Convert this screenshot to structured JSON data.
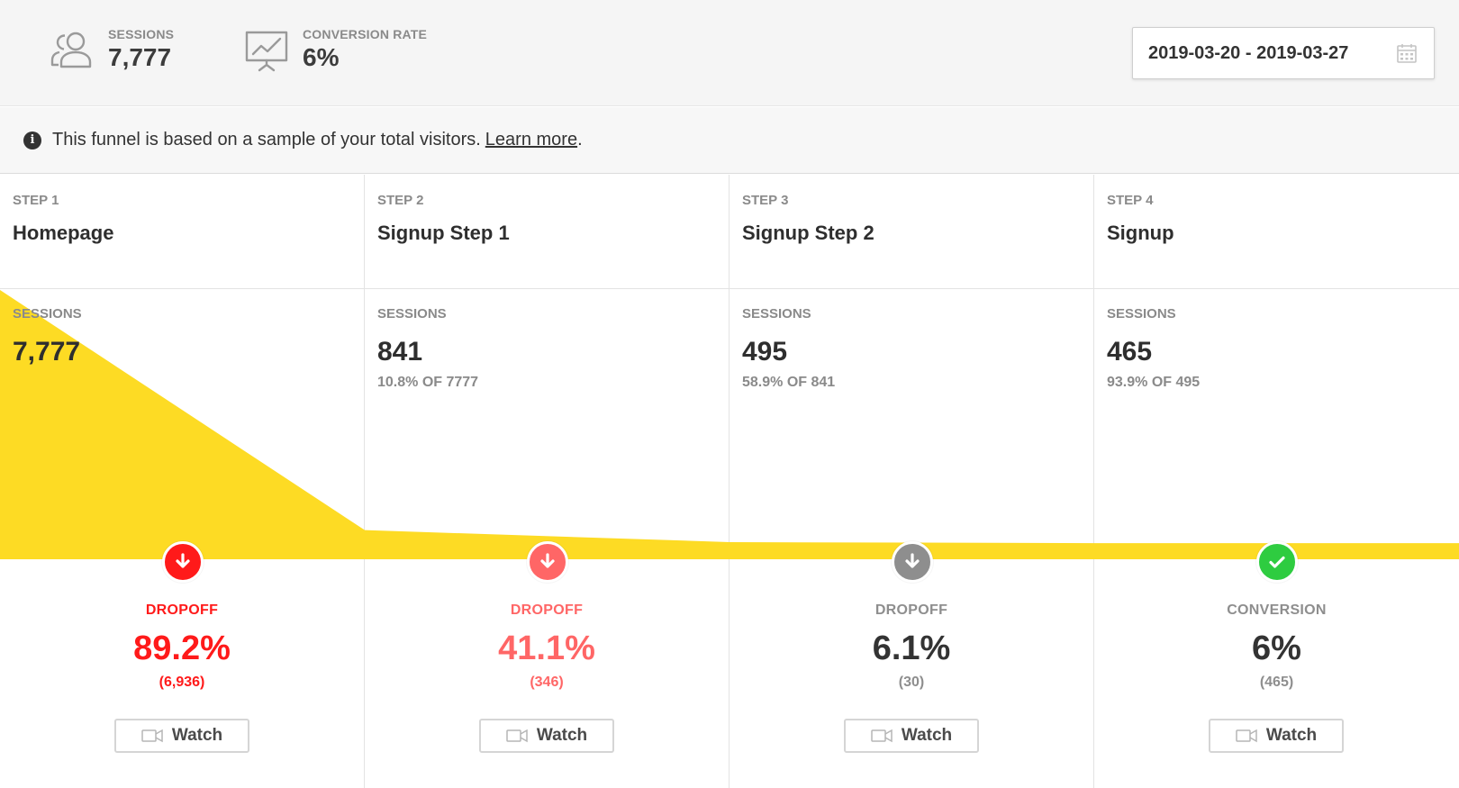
{
  "header": {
    "sessions_label": "SESSIONS",
    "sessions_value": "7,777",
    "sessions_icon": "users-icon",
    "conversion_label": "CONVERSION RATE",
    "conversion_value": "6%",
    "conversion_icon": "presentation-chart-icon",
    "date_range": "2019-03-20 - 2019-03-27",
    "calendar_icon": "calendar-icon"
  },
  "notice": {
    "icon": "info-icon",
    "text": "This funnel is based on a sample of your total visitors.",
    "link": "Learn more",
    "trailing": "."
  },
  "colors": {
    "funnel_fill": "#fddb24",
    "dropoff_red": "#ff1a1a",
    "dropoff_lightred": "#ff6666",
    "neutral_gray": "#8e8e8e",
    "conversion_green": "#2ecc40"
  },
  "steps": [
    {
      "step_label": "STEP 1",
      "name": "Homepage",
      "sessions_label": "SESSIONS",
      "sessions": "7,777",
      "sessions_value": 7777,
      "pct_of_prev": "",
      "metric_label": "DROPOFF",
      "metric_value": "89.2%",
      "metric_count": "(6,936)",
      "status": "dropoff-severe",
      "badge_icon": "arrow-down-icon",
      "watch_label": "Watch"
    },
    {
      "step_label": "STEP 2",
      "name": "Signup Step 1",
      "sessions_label": "SESSIONS",
      "sessions": "841",
      "sessions_value": 841,
      "pct_of_prev": "10.8% OF 7777",
      "metric_label": "DROPOFF",
      "metric_value": "41.1%",
      "metric_count": "(346)",
      "status": "dropoff-moderate",
      "badge_icon": "arrow-down-icon",
      "watch_label": "Watch"
    },
    {
      "step_label": "STEP 3",
      "name": "Signup Step 2",
      "sessions_label": "SESSIONS",
      "sessions": "495",
      "sessions_value": 495,
      "pct_of_prev": "58.9% OF 841",
      "metric_label": "DROPOFF",
      "metric_value": "6.1%",
      "metric_count": "(30)",
      "status": "dropoff-low",
      "badge_icon": "arrow-down-icon",
      "watch_label": "Watch"
    },
    {
      "step_label": "STEP 4",
      "name": "Signup",
      "sessions_label": "SESSIONS",
      "sessions": "465",
      "sessions_value": 465,
      "pct_of_prev": "93.9% OF 495",
      "metric_label": "CONVERSION",
      "metric_value": "6%",
      "metric_count": "(465)",
      "status": "conversion",
      "badge_icon": "check-icon",
      "watch_label": "Watch"
    }
  ]
}
